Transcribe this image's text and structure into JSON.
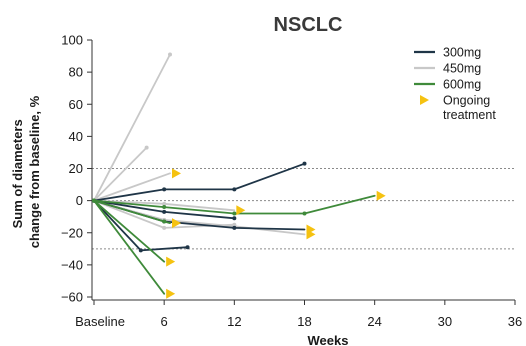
{
  "chart_data": {
    "type": "line",
    "title": "NSCLC",
    "xlabel": "Weeks",
    "ylabel_lines": [
      "Sum of diameters",
      "change from baseline, %"
    ],
    "x_ticks": [
      {
        "value": 0,
        "label": "Baseline"
      },
      {
        "value": 6,
        "label": "6"
      },
      {
        "value": 12,
        "label": "12"
      },
      {
        "value": 18,
        "label": "18"
      },
      {
        "value": 24,
        "label": "24"
      },
      {
        "value": 30,
        "label": "30"
      },
      {
        "value": 36,
        "label": "36"
      }
    ],
    "y_ticks": [
      100,
      80,
      60,
      40,
      20,
      0,
      -20,
      -40,
      -60
    ],
    "xlim": [
      -0.5,
      36
    ],
    "ylim": [
      -63,
      101
    ],
    "reference_lines": [
      20,
      0,
      -30
    ],
    "grid": false,
    "legend_position": "top-right",
    "legend": [
      {
        "label": "300mg",
        "kind": "line",
        "color": "#1f3547"
      },
      {
        "label": "450mg",
        "kind": "line",
        "color": "#c8c8c8"
      },
      {
        "label": "600mg",
        "kind": "line",
        "color": "#3f8a3a"
      },
      {
        "label": "Ongoing",
        "label2": "treatment",
        "kind": "triangle",
        "color": "#f5c211"
      }
    ],
    "series": [
      {
        "group": "450mg",
        "color": "#c8c8c8",
        "points": [
          [
            0,
            0
          ],
          [
            6.5,
            91
          ]
        ],
        "ongoing": false
      },
      {
        "group": "450mg",
        "color": "#c8c8c8",
        "points": [
          [
            0,
            0
          ],
          [
            4.5,
            33
          ]
        ],
        "ongoing": false
      },
      {
        "group": "450mg",
        "color": "#c8c8c8",
        "points": [
          [
            0,
            0
          ],
          [
            6.5,
            17
          ]
        ],
        "ongoing": true
      },
      {
        "group": "450mg",
        "color": "#c8c8c8",
        "points": [
          [
            0,
            0
          ],
          [
            6,
            -2
          ],
          [
            12,
            -6
          ]
        ],
        "ongoing": true
      },
      {
        "group": "450mg",
        "color": "#c8c8c8",
        "points": [
          [
            0,
            0
          ],
          [
            6,
            -12
          ],
          [
            12,
            -16
          ],
          [
            18,
            -21
          ]
        ],
        "ongoing": true
      },
      {
        "group": "450mg",
        "color": "#c8c8c8",
        "points": [
          [
            0,
            0
          ],
          [
            6,
            -17
          ],
          [
            12,
            -15
          ]
        ],
        "ongoing": false
      },
      {
        "group": "300mg",
        "color": "#1f3547",
        "points": [
          [
            0,
            0
          ],
          [
            6,
            7
          ],
          [
            12,
            7
          ],
          [
            18,
            23
          ]
        ],
        "ongoing": false
      },
      {
        "group": "300mg",
        "color": "#1f3547",
        "points": [
          [
            0,
            0
          ],
          [
            6,
            -7
          ],
          [
            12,
            -11
          ]
        ],
        "ongoing": false
      },
      {
        "group": "300mg",
        "color": "#1f3547",
        "points": [
          [
            0,
            0
          ],
          [
            6,
            -13
          ],
          [
            12,
            -17
          ],
          [
            18,
            -18
          ]
        ],
        "ongoing": true
      },
      {
        "group": "300mg",
        "color": "#1f3547",
        "points": [
          [
            0,
            0
          ],
          [
            4,
            -31
          ],
          [
            8,
            -29
          ]
        ],
        "ongoing": false
      },
      {
        "group": "600mg",
        "color": "#3f8a3a",
        "points": [
          [
            0,
            0
          ],
          [
            6,
            -4
          ],
          [
            12,
            -8
          ],
          [
            18,
            -8
          ],
          [
            24,
            3
          ]
        ],
        "ongoing": true
      },
      {
        "group": "600mg",
        "color": "#3f8a3a",
        "points": [
          [
            0,
            0
          ],
          [
            6,
            -13
          ],
          [
            6.5,
            -14
          ]
        ],
        "ongoing": true
      },
      {
        "group": "600mg",
        "color": "#3f8a3a",
        "points": [
          [
            0,
            0
          ],
          [
            6,
            -38
          ]
        ],
        "ongoing": true
      },
      {
        "group": "600mg",
        "color": "#3f8a3a",
        "points": [
          [
            0,
            0
          ],
          [
            6,
            -58
          ]
        ],
        "ongoing": true
      }
    ]
  }
}
